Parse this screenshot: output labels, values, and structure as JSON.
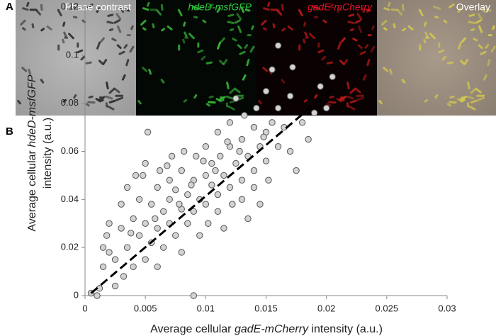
{
  "panel_a": {
    "letter": "A",
    "labels": [
      "Phase contrast",
      "hdeD-msfGFP",
      "gadE-mCherry",
      "Overlay"
    ]
  },
  "chart_data": {
    "type": "scatter",
    "letter": "B",
    "xlabel": [
      "Average cellular ",
      "gadE-mCherry",
      " intensity (a.u.)"
    ],
    "ylabel": [
      "Average cellular ",
      "hdeD-msfGFP",
      "intensity (a.u.)"
    ],
    "xlim": [
      0,
      0.03
    ],
    "ylim": [
      0,
      0.12
    ],
    "xticks": [
      0,
      0.005,
      0.01,
      0.015,
      0.02,
      0.025,
      0.03
    ],
    "yticks": [
      0,
      0.02,
      0.04,
      0.06,
      0.08,
      0.1,
      0.12
    ],
    "color": "#d3d3d3",
    "series": [
      {
        "x": [
          0.0005,
          0.001,
          0.0015,
          0.0015,
          0.0018,
          0.002,
          0.002,
          0.0025,
          0.003,
          0.003,
          0.0032,
          0.0035,
          0.0035,
          0.004,
          0.004,
          0.0042,
          0.0045,
          0.0045,
          0.005,
          0.005,
          0.005,
          0.0052,
          0.0055,
          0.0055,
          0.006,
          0.006,
          0.006,
          0.0062,
          0.0065,
          0.0065,
          0.007,
          0.007,
          0.007,
          0.0072,
          0.0075,
          0.0075,
          0.008,
          0.008,
          0.008,
          0.0082,
          0.0085,
          0.0085,
          0.009,
          0.009,
          0.009,
          0.0092,
          0.0095,
          0.0095,
          0.01,
          0.01,
          0.01,
          0.0102,
          0.0105,
          0.0105,
          0.011,
          0.011,
          0.011,
          0.0112,
          0.0115,
          0.0115,
          0.012,
          0.012,
          0.012,
          0.0122,
          0.0125,
          0.0125,
          0.013,
          0.013,
          0.013,
          0.0132,
          0.0135,
          0.0135,
          0.014,
          0.014,
          0.014,
          0.0142,
          0.0145,
          0.0145,
          0.015,
          0.015,
          0.015,
          0.0152,
          0.0155,
          0.0155,
          0.016,
          0.016,
          0.016,
          0.0165,
          0.017,
          0.017,
          0.0172,
          0.0175,
          0.018,
          0.0185,
          0.019,
          0.0195,
          0.02,
          0.0205,
          0.0012,
          0.0025,
          0.0048,
          0.0068,
          0.0088,
          0.0108,
          0.0128,
          0.0148,
          0.0118,
          0.0098,
          0.0078,
          0.0058,
          0.0038
        ],
        "values": [
          0.001,
          0.0,
          0.012,
          0.02,
          0.025,
          0.03,
          0.018,
          0.004,
          0.028,
          0.038,
          0.008,
          0.045,
          0.02,
          0.032,
          0.012,
          0.05,
          0.025,
          0.04,
          0.055,
          0.03,
          0.015,
          0.068,
          0.038,
          0.022,
          0.045,
          0.028,
          0.012,
          0.052,
          0.035,
          0.02,
          0.048,
          0.03,
          0.04,
          0.058,
          0.025,
          0.044,
          0.036,
          0.052,
          0.018,
          0.06,
          0.042,
          0.03,
          0.048,
          0.0,
          0.035,
          0.058,
          0.04,
          0.025,
          0.05,
          0.038,
          0.062,
          0.03,
          0.046,
          0.055,
          0.042,
          0.068,
          0.035,
          0.058,
          0.05,
          0.028,
          0.062,
          0.045,
          0.072,
          0.038,
          0.055,
          0.082,
          0.048,
          0.065,
          0.04,
          0.075,
          0.058,
          0.032,
          0.052,
          0.07,
          0.045,
          0.078,
          0.062,
          0.038,
          0.056,
          0.085,
          0.068,
          0.048,
          0.072,
          0.094,
          0.104,
          0.062,
          0.078,
          0.07,
          0.06,
          0.083,
          0.095,
          0.052,
          0.072,
          0.065,
          0.076,
          0.087,
          0.078,
          0.091,
          0.003,
          0.015,
          0.05,
          0.054,
          0.046,
          0.052,
          0.06,
          0.066,
          0.064,
          0.056,
          0.038,
          0.032,
          0.026
        ]
      }
    ],
    "trendline": {
      "x": [
        0.0005,
        0.0205
      ],
      "values": [
        0.001,
        0.086
      ]
    }
  }
}
